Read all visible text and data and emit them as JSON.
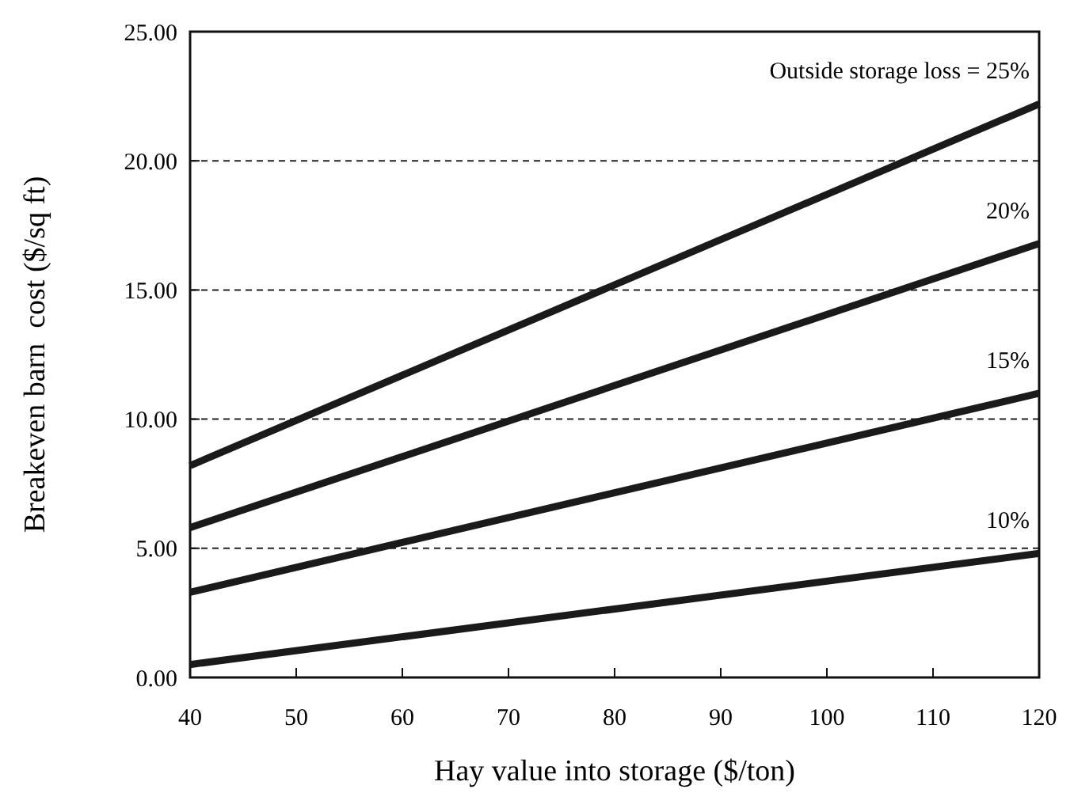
{
  "chart_data": {
    "type": "line",
    "xlabel": "Hay value into storage ($/ton)",
    "ylabel": "Breakeven barn  cost ($/sq ft)",
    "x": [
      40,
      120
    ],
    "series": [
      {
        "name": "Outside storage loss = 25%",
        "color": "#1a1a1a",
        "values": [
          8.2,
          22.2
        ]
      },
      {
        "name": "20%",
        "color": "#1a1a1a",
        "values": [
          5.8,
          16.8
        ]
      },
      {
        "name": "15%",
        "color": "#1a1a1a",
        "values": [
          3.3,
          11.0
        ]
      },
      {
        "name": "10%",
        "color": "#1a1a1a",
        "values": [
          0.5,
          4.8
        ]
      }
    ],
    "xlim": [
      40,
      120
    ],
    "xticks": [
      40,
      50,
      60,
      70,
      80,
      90,
      100,
      110,
      120
    ],
    "ylim": [
      0,
      25
    ],
    "yticks": [
      {
        "value": 0,
        "label": "0.00"
      },
      {
        "value": 5,
        "label": "5.00"
      },
      {
        "value": 10,
        "label": "10.00"
      },
      {
        "value": 15,
        "label": "15.00"
      },
      {
        "value": 20,
        "label": "20.00"
      },
      {
        "value": 25,
        "label": "25.00"
      }
    ],
    "grid": "y",
    "line_style": "solid",
    "marker": "none"
  }
}
